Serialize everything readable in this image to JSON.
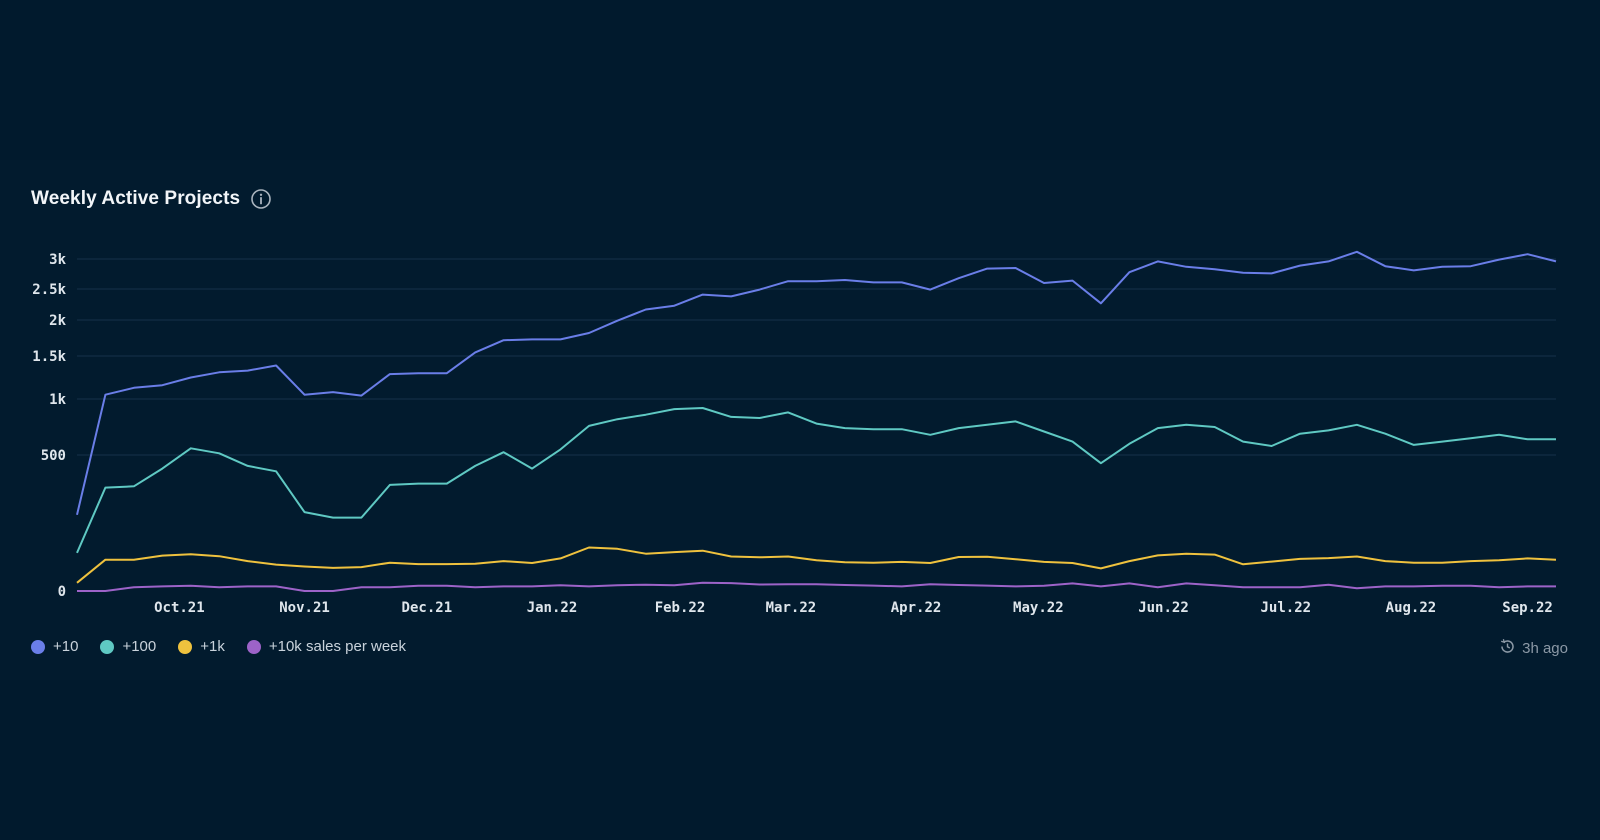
{
  "card": {
    "title": "Weekly Active Projects",
    "updated": "3h ago"
  },
  "icons": {
    "info": "info-icon",
    "refresh": "refresh-clock-icon"
  },
  "chart_data": {
    "type": "line",
    "title": "Weekly Active Projects",
    "xlabel": "",
    "ylabel": "",
    "y_scale": "nonlinear (compressed toward 0)",
    "y_ticks": [
      {
        "value": 0,
        "label": "0"
      },
      {
        "value": 500,
        "label": "500"
      },
      {
        "value": 1000,
        "label": "1k"
      },
      {
        "value": 1500,
        "label": "1.5k"
      },
      {
        "value": 2000,
        "label": "2k"
      },
      {
        "value": 2500,
        "label": "2.5k"
      },
      {
        "value": 3000,
        "label": "3k"
      }
    ],
    "x_ticks": [
      {
        "index": 3.6,
        "label": "Oct.21"
      },
      {
        "index": 8.0,
        "label": "Nov.21"
      },
      {
        "index": 12.3,
        "label": "Dec.21"
      },
      {
        "index": 16.7,
        "label": "Jan.22"
      },
      {
        "index": 21.2,
        "label": "Feb.22"
      },
      {
        "index": 25.1,
        "label": "Mar.22"
      },
      {
        "index": 29.5,
        "label": "Apr.22"
      },
      {
        "index": 33.8,
        "label": "May.22"
      },
      {
        "index": 38.2,
        "label": "Jun.22"
      },
      {
        "index": 42.5,
        "label": "Jul.22"
      },
      {
        "index": 46.9,
        "label": "Aug.22"
      },
      {
        "index": 51.0,
        "label": "Sep.22"
      }
    ],
    "grid": true,
    "legend": "bottom-left",
    "series": [
      {
        "name": "+10",
        "color": "#6a7ee8",
        "values": [
          280,
          1050,
          1130,
          1160,
          1250,
          1310,
          1330,
          1390,
          1050,
          1080,
          1040,
          1290,
          1300,
          1300,
          1550,
          1720,
          1730,
          1730,
          1820,
          1990,
          2170,
          2230,
          2410,
          2380,
          2490,
          2630,
          2630,
          2650,
          2610,
          2610,
          2490,
          2680,
          2840,
          2850,
          2600,
          2640,
          2270,
          2780,
          2960,
          2870,
          2830,
          2770,
          2760,
          2890,
          2960,
          3120,
          2880,
          2810,
          2870,
          2880,
          2990,
          3080,
          2960
        ]
      },
      {
        "name": "+100",
        "color": "#5fc9c3",
        "values": [
          140,
          380,
          385,
          450,
          560,
          515,
          460,
          440,
          290,
          270,
          270,
          390,
          395,
          395,
          460,
          525,
          450,
          550,
          760,
          820,
          860,
          910,
          920,
          840,
          830,
          880,
          780,
          740,
          730,
          730,
          680,
          740,
          770,
          800,
          710,
          620,
          470,
          600,
          740,
          770,
          750,
          620,
          580,
          690,
          720,
          770,
          690,
          590,
          620,
          650,
          680,
          640,
          640
        ]
      },
      {
        "name": "+1k",
        "color": "#efc23e",
        "values": [
          30,
          115,
          115,
          130,
          135,
          128,
          110,
          97,
          90,
          85,
          88,
          104,
          99,
          99,
          100,
          110,
          103,
          120,
          160,
          155,
          137,
          143,
          148,
          127,
          124,
          127,
          113,
          106,
          104,
          107,
          103,
          125,
          126,
          117,
          107,
          103,
          83,
          110,
          131,
          137,
          134,
          98,
          108,
          118,
          121,
          127,
          110,
          104,
          104,
          110,
          113,
          120,
          115
        ]
      },
      {
        "name": "+10k sales per week",
        "color": "#9d63c8",
        "values": [
          0,
          0,
          14,
          17,
          19,
          14,
          17,
          17,
          0,
          0,
          14,
          14,
          19,
          19,
          14,
          17,
          17,
          21,
          17,
          21,
          23,
          21,
          30,
          29,
          24,
          25,
          25,
          22,
          20,
          17,
          25,
          22,
          20,
          17,
          19,
          28,
          17,
          28,
          14,
          28,
          21,
          14,
          14,
          14,
          23,
          10,
          17,
          17,
          19,
          19,
          14,
          17,
          17
        ]
      }
    ]
  }
}
